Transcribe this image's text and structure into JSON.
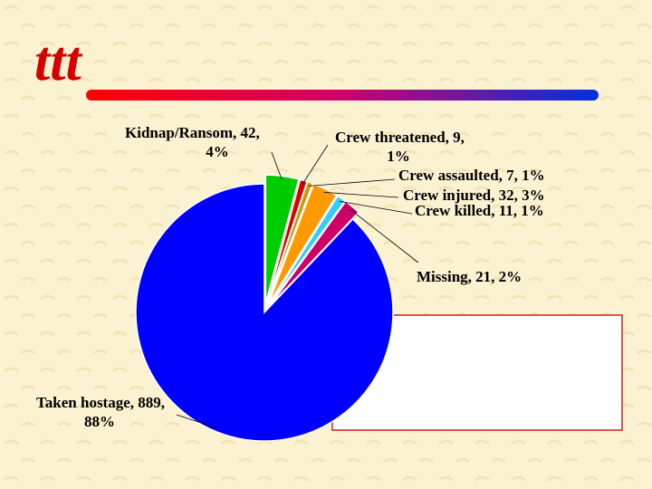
{
  "logo": "ttt",
  "chart_data": {
    "type": "pie",
    "labels": [
      "Kidnap/Ransom, 42, 4%",
      "Crew threatened, 9, 1%",
      "Crew assaulted, 7, 1%",
      "Crew injured, 32, 3%",
      "Crew killed, 11, 1%",
      "Missing, 21, 2%",
      "Taken hostage, 889, 88%"
    ],
    "values": [
      42,
      9,
      7,
      32,
      11,
      21,
      889
    ],
    "colors": [
      "#00cc00",
      "#dd0000",
      "#cc9900",
      "#ff9900",
      "#33ccff",
      "#cc0066",
      "#0000ff"
    ]
  }
}
